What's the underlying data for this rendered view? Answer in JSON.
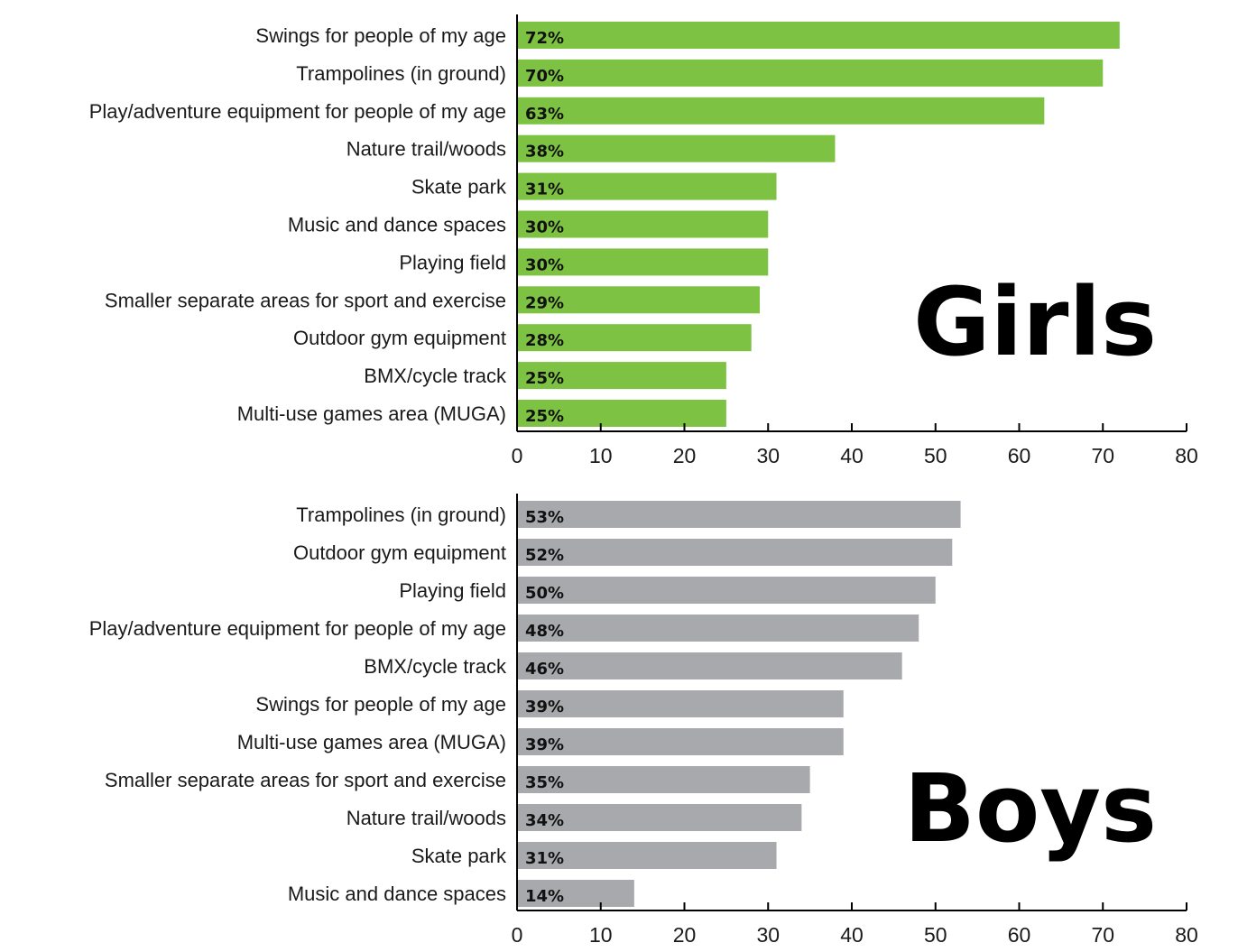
{
  "chart_data": [
    {
      "type": "bar",
      "orientation": "horizontal",
      "title": "Girls",
      "color": "#7dc242",
      "categories": [
        "Swings for people of my age",
        "Trampolines (in ground)",
        "Play/adventure equipment for people of my age",
        "Nature trail/woods",
        "Skate park",
        "Music and dance spaces",
        "Playing field",
        "Smaller separate areas for sport and exercise",
        "Outdoor gym equipment",
        "BMX/cycle track",
        "Multi-use games area (MUGA)"
      ],
      "values": [
        72,
        70,
        63,
        38,
        31,
        30,
        30,
        29,
        28,
        25,
        25
      ],
      "value_labels": [
        "72%",
        "70%",
        "63%",
        "38%",
        "31%",
        "30%",
        "30%",
        "29%",
        "28%",
        "25%",
        "25%"
      ],
      "xlim": [
        0,
        80
      ],
      "xticks": [
        "0",
        "10",
        "20",
        "30",
        "40",
        "50",
        "60",
        "70",
        "80"
      ],
      "xlabel": "",
      "ylabel": "",
      "grid": false
    },
    {
      "type": "bar",
      "orientation": "horizontal",
      "title": "Boys",
      "color": "#a7a9ac",
      "categories": [
        "Trampolines (in ground)",
        "Outdoor gym equipment",
        "Playing field",
        "Play/adventure equipment for people of my age",
        "BMX/cycle track",
        "Swings for people of my age",
        "Multi-use games area (MUGA)",
        "Smaller separate areas for sport and exercise",
        "Nature trail/woods",
        "Skate park",
        "Music and dance spaces"
      ],
      "values": [
        53,
        52,
        50,
        48,
        46,
        39,
        39,
        35,
        34,
        31,
        14
      ],
      "value_labels": [
        "53%",
        "52%",
        "50%",
        "48%",
        "46%",
        "39%",
        "39%",
        "35%",
        "34%",
        "31%",
        "14%"
      ],
      "xlim": [
        0,
        80
      ],
      "xticks": [
        "0",
        "10",
        "20",
        "30",
        "40",
        "50",
        "60",
        "70",
        "80"
      ],
      "xlabel": "",
      "ylabel": "",
      "grid": false
    }
  ]
}
